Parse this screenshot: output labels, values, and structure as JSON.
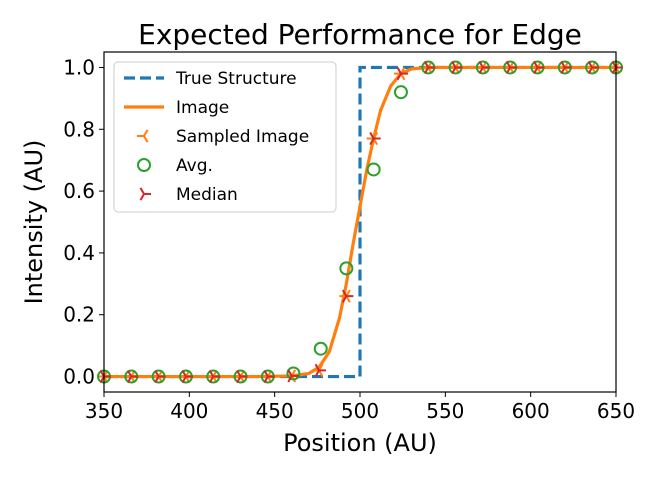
{
  "chart_data": {
    "type": "line",
    "title": "Expected Performance for Edge",
    "xlabel": "Position (AU)",
    "ylabel": "Intensity (AU)",
    "xlim": [
      350,
      650
    ],
    "ylim": [
      -0.05,
      1.05
    ],
    "xticks": [
      350,
      400,
      450,
      500,
      550,
      600,
      650
    ],
    "yticks": [
      0.0,
      0.2,
      0.4,
      0.6,
      0.8,
      1.0
    ],
    "xtick_labels": [
      "350",
      "400",
      "450",
      "500",
      "550",
      "600",
      "650"
    ],
    "ytick_labels": [
      "0.0",
      "0.2",
      "0.4",
      "0.6",
      "0.8",
      "1.0"
    ],
    "grid": false,
    "legend_position": "top-left",
    "series": [
      {
        "name": "True Structure",
        "style": "dashed-line",
        "color": "#1f77b4",
        "x": [
          350,
          500,
          500,
          650
        ],
        "y": [
          0,
          0,
          1,
          1
        ]
      },
      {
        "name": "Image",
        "style": "line",
        "color": "#ff7f0e",
        "x": [
          350,
          440,
          460,
          470,
          476,
          482,
          488,
          492,
          496,
          500,
          504,
          508,
          512,
          518,
          524,
          530,
          540,
          560,
          650
        ],
        "y": [
          0,
          0,
          0.002,
          0.01,
          0.03,
          0.08,
          0.19,
          0.3,
          0.43,
          0.55,
          0.67,
          0.77,
          0.86,
          0.94,
          0.98,
          0.995,
          1.0,
          1.0,
          1.0
        ]
      },
      {
        "name": "Sampled Image",
        "style": "tri-left-marker",
        "color": "#ff7f0e",
        "x": [
          350,
          366,
          382,
          398,
          414,
          430,
          446,
          460,
          476,
          492,
          508,
          524,
          540,
          556,
          572,
          588,
          604,
          620,
          636,
          650
        ],
        "y": [
          0,
          0,
          0,
          0,
          0,
          0,
          0,
          0.002,
          0.02,
          0.26,
          0.77,
          0.98,
          1.0,
          1.0,
          1.0,
          1.0,
          1.0,
          1.0,
          1.0,
          1.0
        ]
      },
      {
        "name": "Avg.",
        "style": "open-circle-marker",
        "color": "#2ca02c",
        "x": [
          350,
          366,
          382,
          398,
          414,
          430,
          446,
          461,
          477,
          492,
          508,
          524,
          540,
          556,
          572,
          588,
          604,
          620,
          636,
          650
        ],
        "y": [
          0,
          0,
          0,
          0,
          0,
          0,
          0,
          0.01,
          0.09,
          0.35,
          0.67,
          0.92,
          1.0,
          1.0,
          1.0,
          1.0,
          1.0,
          1.0,
          1.0,
          1.0
        ]
      },
      {
        "name": "Median",
        "style": "tri-right-marker",
        "color": "#d62728",
        "x": [
          350,
          366,
          382,
          398,
          414,
          430,
          446,
          460,
          476,
          492,
          508,
          524,
          540,
          556,
          572,
          588,
          604,
          620,
          636,
          650
        ],
        "y": [
          0,
          0,
          0,
          0,
          0,
          0,
          0,
          0.002,
          0.02,
          0.26,
          0.77,
          0.98,
          1.0,
          1.0,
          1.0,
          1.0,
          1.0,
          1.0,
          1.0,
          1.0
        ]
      }
    ]
  }
}
